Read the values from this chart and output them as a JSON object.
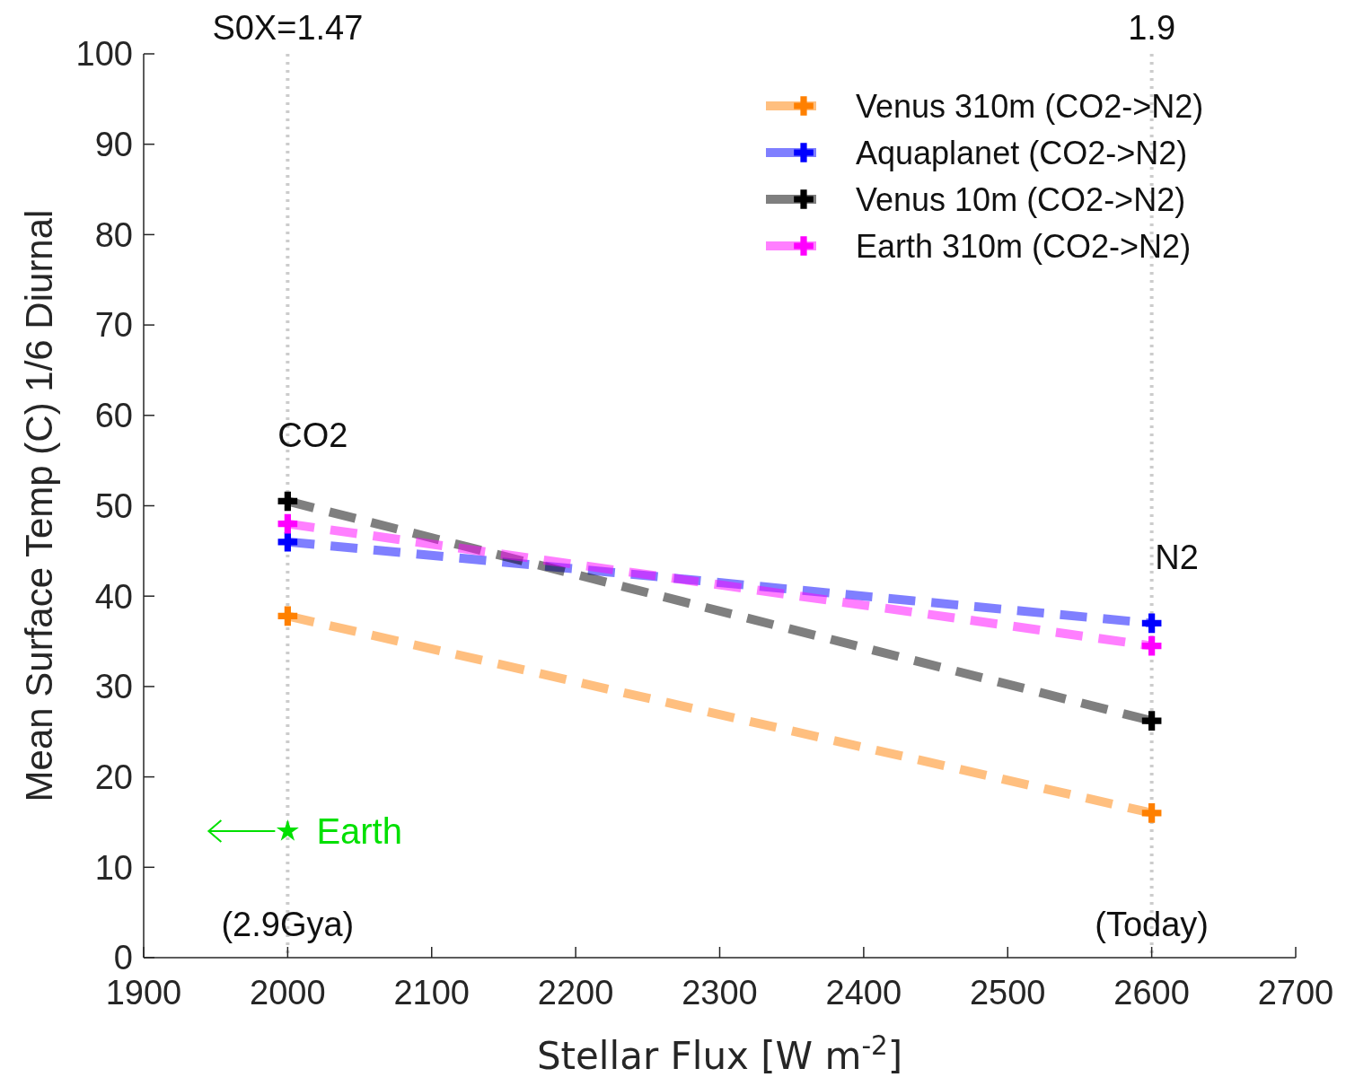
{
  "chart_data": {
    "type": "line",
    "xlabel": "Stellar Flux [W m$^{-2}$]",
    "ylabel": "Mean Surface Temp (C) 1/6 Diurnal",
    "xlim": [
      1900,
      2700
    ],
    "xticks": [
      1900,
      2000,
      2100,
      2200,
      2300,
      2400,
      2500,
      2600,
      2700
    ],
    "ylim": [
      0,
      100
    ],
    "yticks": [
      0,
      10,
      20,
      30,
      40,
      50,
      60,
      70,
      80,
      90,
      100
    ],
    "grid": false,
    "legend": "top right",
    "marker": "cross",
    "line_style": "dashed",
    "x": [
      2000,
      2600
    ],
    "series": [
      {
        "name": "Venus 310m (CO2->N2)",
        "color": "#ff8000",
        "values": [
          37.8,
          16
        ]
      },
      {
        "name": "Aquaplanet (CO2->N2)",
        "color": "#0000ff",
        "values": [
          46,
          37
        ]
      },
      {
        "name": "Venus 10m (CO2->N2)",
        "color": "#000000",
        "values": [
          50.5,
          26.2
        ]
      },
      {
        "name": "Earth 310m (CO2->N2)",
        "color": "#ff00ff",
        "values": [
          48,
          34.5
        ]
      },
      {
        "name": "Earth",
        "type": "scatter",
        "marker": "star",
        "color": "#00e000",
        "x": [
          2000
        ],
        "values": [
          14
        ]
      }
    ],
    "ref_lines": [
      {
        "axis": "x",
        "value": 2000,
        "color": "#cccccc",
        "line_style": "dotted"
      },
      {
        "axis": "x",
        "value": 2600,
        "color": "#cccccc",
        "line_style": "dotted"
      }
    ],
    "annotations": [
      "S0X=1.47",
      "1.9",
      "CO2",
      "N2",
      "(2.9Gya)",
      "(Today)"
    ]
  }
}
